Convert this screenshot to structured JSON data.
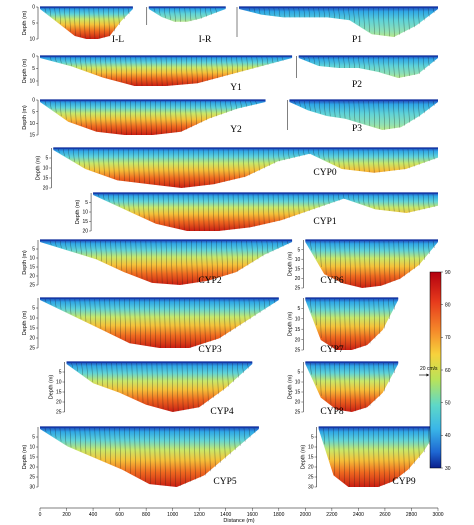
{
  "figure": {
    "colorbar": {
      "ticks": [
        90,
        80,
        70,
        60,
        50,
        40,
        30
      ],
      "min": 30,
      "max": 90
    },
    "velocity_scale_label": "20 cm/s",
    "x_axis": {
      "label": "Distance (m)",
      "ticks": [
        0,
        200,
        400,
        600,
        800,
        1000,
        1200,
        1400,
        1600,
        1800,
        2000,
        2200,
        2400,
        2600,
        2800,
        3000
      ]
    },
    "y_axis_label": "Depth (m)"
  },
  "chart_data": {
    "type": "heatmap",
    "description_free": true,
    "x_range_m": [
      0,
      3000
    ],
    "colorbar_range": [
      30,
      90
    ],
    "panels": [
      {
        "label": "I-L",
        "x_start_m": 0,
        "x_end_m": 700,
        "max_depth_m": 10,
        "y_ticks": [
          0,
          5,
          10
        ]
      },
      {
        "label": "I-R",
        "x_start_m": 820,
        "x_end_m": 1400,
        "max_depth_m": 5,
        "y_ticks": []
      },
      {
        "label": "P1",
        "x_start_m": 1500,
        "x_end_m": 3000,
        "max_depth_m": 6,
        "y_ticks": []
      },
      {
        "label": "Y1",
        "x_start_m": 0,
        "x_end_m": 1900,
        "max_depth_m": 12,
        "y_ticks": [
          0,
          5,
          10
        ]
      },
      {
        "label": "P2",
        "x_start_m": 1950,
        "x_end_m": 3000,
        "max_depth_m": 6,
        "y_ticks": []
      },
      {
        "label": "Y2",
        "x_start_m": 0,
        "x_end_m": 1700,
        "max_depth_m": 15,
        "y_ticks": [
          0,
          5,
          10,
          15
        ]
      },
      {
        "label": "P3",
        "x_start_m": 1880,
        "x_end_m": 3000,
        "max_depth_m": 8,
        "y_ticks": []
      },
      {
        "label": "CYP0",
        "x_start_m": 100,
        "x_end_m": 3000,
        "max_depth_m": 20,
        "y_ticks": [
          5,
          10,
          15,
          20
        ]
      },
      {
        "label": "CYP1",
        "x_start_m": 400,
        "x_end_m": 3000,
        "max_depth_m": 20,
        "y_ticks": [
          5,
          10,
          15,
          20
        ]
      },
      {
        "label": "CYP2",
        "x_start_m": 0,
        "x_end_m": 1900,
        "max_depth_m": 25,
        "y_ticks": [
          5,
          10,
          15,
          20,
          25
        ]
      },
      {
        "label": "CYP6",
        "x_start_m": 2000,
        "x_end_m": 3000,
        "max_depth_m": 25,
        "y_ticks": [
          5,
          10,
          15,
          20,
          25
        ]
      },
      {
        "label": "CYP3",
        "x_start_m": 0,
        "x_end_m": 1800,
        "max_depth_m": 25,
        "y_ticks": [
          5,
          10,
          15,
          20,
          25
        ]
      },
      {
        "label": "CYP7",
        "x_start_m": 2000,
        "x_end_m": 2700,
        "max_depth_m": 25,
        "y_ticks": [
          5,
          10,
          15,
          20,
          25
        ]
      },
      {
        "label": "CYP4",
        "x_start_m": 200,
        "x_end_m": 1600,
        "max_depth_m": 25,
        "y_ticks": [
          5,
          10,
          15,
          20,
          25
        ]
      },
      {
        "label": "CYP8",
        "x_start_m": 2000,
        "x_end_m": 2700,
        "max_depth_m": 25,
        "y_ticks": [
          5,
          10,
          15,
          20,
          25
        ]
      },
      {
        "label": "CYP5",
        "x_start_m": 0,
        "x_end_m": 1650,
        "max_depth_m": 30,
        "y_ticks": [
          5,
          10,
          15,
          20,
          25,
          30
        ]
      },
      {
        "label": "CYP9",
        "x_start_m": 2100,
        "x_end_m": 3000,
        "max_depth_m": 30,
        "y_ticks": [
          5,
          10,
          15,
          20,
          25,
          30
        ]
      }
    ]
  }
}
